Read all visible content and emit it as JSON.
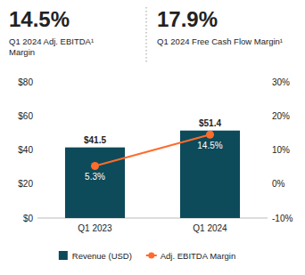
{
  "chart_data": {
    "type": "bar",
    "annotations": [
      "14.5%",
      "Q1 2024 Adj. EBITDA¹",
      "Margin",
      "17.9%",
      "Q1 2024 Free Cash Flow Margin¹"
    ],
    "categories": [
      "Q1 2023",
      "Q1 2024"
    ],
    "series": [
      {
        "name": "Revenue (USD)",
        "type": "bar",
        "color": "#0D4A5A",
        "values": [
          41.5,
          51.4
        ],
        "value_labels": [
          "$41.5",
          "$51.4"
        ]
      },
      {
        "name": "Adj. EBITDA Margin",
        "type": "line",
        "axis": "y2",
        "color": "#FF6B2B",
        "marker": "circle",
        "values": [
          5.3,
          14.5
        ],
        "value_labels": [
          "5.3%",
          "14.5%"
        ]
      }
    ],
    "ylim": [
      0,
      80
    ],
    "yticks": [
      {
        "value": 0,
        "label": "$0"
      },
      {
        "value": 20,
        "label": "$20"
      },
      {
        "value": 40,
        "label": "$40"
      },
      {
        "value": 60,
        "label": "$60"
      },
      {
        "value": 80,
        "label": "$80"
      }
    ],
    "y2lim": [
      -10,
      30
    ],
    "y2ticks": [
      {
        "value": -10,
        "label": "-10%"
      },
      {
        "value": 0,
        "label": "0%"
      },
      {
        "value": 10,
        "label": "10%"
      },
      {
        "value": 20,
        "label": "20%"
      },
      {
        "value": 30,
        "label": "30%"
      }
    ],
    "data_labels": true,
    "grid": false,
    "legend": "bottom"
  }
}
